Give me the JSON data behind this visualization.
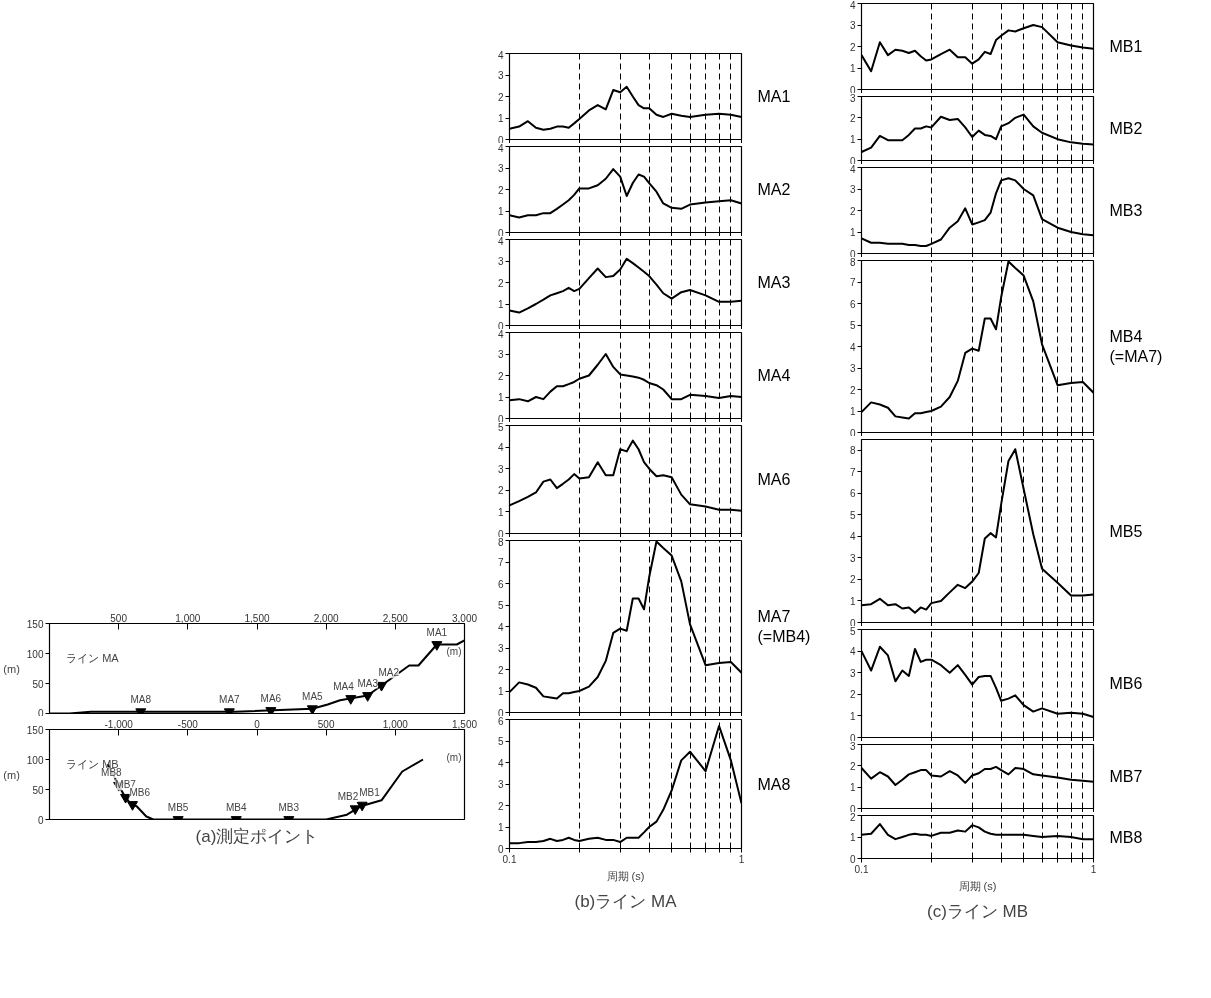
{
  "chart_data": [
    {
      "type": "line",
      "x": [
        0,
        144,
        300,
        1344,
        1900,
        2011,
        2100,
        2300,
        2600,
        2667,
        2800,
        2944,
        3000
      ],
      "series": [
        {
          "color": "#000000",
          "values": [
            0,
            0,
            3,
            3,
            8,
            15,
            22,
            30,
            80,
            80,
            115,
            115,
            122
          ]
        }
      ],
      "xlim": [
        0,
        3000
      ],
      "ylim": [
        0,
        150
      ],
      "xticks": [
        500,
        {
          "value": 1000,
          "label": "1,000"
        },
        {
          "value": 1500,
          "label": "1,500"
        },
        {
          "value": 2000,
          "label": "2,000"
        },
        {
          "value": 2500,
          "label": "2,500"
        },
        {
          "value": 3000,
          "label": "3,000"
        }
      ],
      "yticks": [
        0,
        50,
        100,
        150
      ],
      "ylabel": "(m)",
      "annotations": [
        "ライン MA",
        "(m)",
        {
          "text": "MA8",
          "x": 660,
          "y": 3
        },
        {
          "text": "MA7",
          "x": 1300,
          "y": 3
        },
        {
          "text": "MA6",
          "x": 1600,
          "y": 5
        },
        {
          "text": "MA5",
          "x": 1900,
          "y": 8
        },
        {
          "text": "MA4",
          "x": 2178,
          "y": 25
        },
        {
          "text": "MA3",
          "x": 2300,
          "y": 30
        },
        {
          "text": "MA2",
          "x": 2400,
          "y": 47
        },
        {
          "text": "MA1",
          "x": 2800,
          "y": 115
        }
      ]
    },
    {
      "type": "line",
      "x": [
        -1080,
        -960,
        -920,
        -870,
        -800,
        -750,
        500,
        650,
        750,
        900,
        1050,
        1200
      ],
      "series": [
        {
          "color": "#000000",
          "values": [
            92,
            40,
            28,
            22,
            5,
            0,
            0,
            8,
            22,
            32,
            80,
            100
          ]
        }
      ],
      "xlim": [
        -1500,
        1500
      ],
      "ylim": [
        0,
        150
      ],
      "xticks": [
        {
          "value": -1000,
          "label": "-1,000"
        },
        -500,
        0,
        500,
        {
          "value": 1000,
          "label": "1,000"
        },
        {
          "value": 1500,
          "label": "1,500"
        }
      ],
      "yticks": [
        0,
        50,
        100,
        150
      ],
      "ylabel": "(m)",
      "annotations": [
        "ライン MB",
        "(m)",
        "(a)測定ポイント",
        {
          "text": "MB8",
          "x": -1000,
          "y": 57
        },
        {
          "text": "MB7",
          "x": -950,
          "y": 37
        },
        {
          "text": "MB6",
          "x": -900,
          "y": 25
        },
        {
          "text": "MB5",
          "x": -570,
          "y": 0
        },
        {
          "text": "MB4",
          "x": -150,
          "y": 0
        },
        {
          "text": "MB3",
          "x": 230,
          "y": 0
        },
        {
          "text": "MB2",
          "x": 710,
          "y": 18
        },
        {
          "text": "MB1",
          "x": 760,
          "y": 24
        }
      ]
    },
    {
      "type": "line",
      "log": "x",
      "grid": "x",
      "tick_labels": "y",
      "xlim": [
        0.1,
        1
      ],
      "ylim": [
        0,
        4
      ],
      "yticks": [
        0,
        1,
        2,
        3,
        4
      ],
      "xticks": [
        0.1,
        {
          "value": 0.2,
          "label": null
        },
        {
          "value": 0.3,
          "label": null
        },
        {
          "value": 0.4,
          "label": null
        },
        {
          "value": 0.5,
          "label": null
        },
        {
          "value": 0.6,
          "label": null
        },
        {
          "value": 0.7,
          "label": null
        },
        {
          "value": 0.8,
          "label": null
        },
        {
          "value": 0.9,
          "label": null
        },
        1
      ],
      "x": [
        0.1,
        0.11,
        0.12,
        0.13,
        0.14,
        0.15,
        0.16,
        0.17,
        0.18,
        0.19,
        0.2,
        0.22,
        0.24,
        0.26,
        0.28,
        0.3,
        0.32,
        0.34,
        0.36,
        0.38,
        0.4,
        0.43,
        0.46,
        0.5,
        0.55,
        0.6,
        0.7,
        0.8,
        0.9,
        1
      ],
      "series": [
        {
          "name": "MA1",
          "color": "#000000",
          "values": [
            0.5,
            0.6,
            0.85,
            0.55,
            0.45,
            0.5,
            0.6,
            0.6,
            0.55,
            0.75,
            0.95,
            1.35,
            1.6,
            1.4,
            2.3,
            2.2,
            2.45,
            2.0,
            1.6,
            1.45,
            1.45,
            1.15,
            1.05,
            1.2,
            1.1,
            1.05,
            1.15,
            1.2,
            1.15,
            1.05
          ]
        }
      ]
    },
    {
      "type": "line",
      "log": "x",
      "grid": "x",
      "tick_labels": "y",
      "xlim": [
        0.1,
        1
      ],
      "ylim": [
        0,
        4
      ],
      "yticks": [
        0,
        1,
        2,
        3,
        4
      ],
      "xticks": [
        0.1,
        {
          "value": 0.2,
          "label": null
        },
        {
          "value": 0.3,
          "label": null
        },
        {
          "value": 0.4,
          "label": null
        },
        {
          "value": 0.5,
          "label": null
        },
        {
          "value": 0.6,
          "label": null
        },
        {
          "value": 0.7,
          "label": null
        },
        {
          "value": 0.8,
          "label": null
        },
        {
          "value": 0.9,
          "label": null
        },
        1
      ],
      "x": [
        0.1,
        0.11,
        0.12,
        0.13,
        0.14,
        0.15,
        0.16,
        0.17,
        0.18,
        0.19,
        0.2,
        0.22,
        0.24,
        0.26,
        0.28,
        0.3,
        0.32,
        0.34,
        0.36,
        0.38,
        0.4,
        0.43,
        0.46,
        0.5,
        0.55,
        0.6,
        0.7,
        0.8,
        0.9,
        1
      ],
      "series": [
        {
          "name": "MA2",
          "color": "#000000",
          "values": [
            0.8,
            0.7,
            0.8,
            0.8,
            0.9,
            0.9,
            1.1,
            1.3,
            1.5,
            1.75,
            2.05,
            2.05,
            2.2,
            2.5,
            2.95,
            2.6,
            1.7,
            2.3,
            2.7,
            2.6,
            2.3,
            1.9,
            1.35,
            1.15,
            1.1,
            1.3,
            1.4,
            1.45,
            1.5,
            1.35
          ]
        }
      ]
    },
    {
      "type": "line",
      "log": "x",
      "grid": "x",
      "tick_labels": "y",
      "xlim": [
        0.1,
        1
      ],
      "ylim": [
        0,
        4
      ],
      "yticks": [
        0,
        1,
        2,
        3,
        4
      ],
      "xticks": [
        0.1,
        {
          "value": 0.2,
          "label": null
        },
        {
          "value": 0.3,
          "label": null
        },
        {
          "value": 0.4,
          "label": null
        },
        {
          "value": 0.5,
          "label": null
        },
        {
          "value": 0.6,
          "label": null
        },
        {
          "value": 0.7,
          "label": null
        },
        {
          "value": 0.8,
          "label": null
        },
        {
          "value": 0.9,
          "label": null
        },
        1
      ],
      "x": [
        0.1,
        0.11,
        0.12,
        0.13,
        0.14,
        0.15,
        0.16,
        0.17,
        0.18,
        0.19,
        0.2,
        0.22,
        0.24,
        0.26,
        0.28,
        0.3,
        0.32,
        0.34,
        0.36,
        0.38,
        0.4,
        0.43,
        0.46,
        0.5,
        0.55,
        0.6,
        0.7,
        0.8,
        0.9,
        1
      ],
      "series": [
        {
          "name": "MA3",
          "color": "#000000",
          "values": [
            0.7,
            0.6,
            0.8,
            1.0,
            1.2,
            1.4,
            1.5,
            1.6,
            1.75,
            1.6,
            1.7,
            2.2,
            2.65,
            2.25,
            2.3,
            2.6,
            3.1,
            2.9,
            2.7,
            2.5,
            2.3,
            1.9,
            1.5,
            1.25,
            1.55,
            1.65,
            1.4,
            1.1,
            1.1,
            1.15
          ]
        }
      ]
    },
    {
      "type": "line",
      "log": "x",
      "grid": "x",
      "tick_labels": "y",
      "xlim": [
        0.1,
        1
      ],
      "ylim": [
        0,
        4
      ],
      "yticks": [
        0,
        1,
        2,
        3,
        4
      ],
      "xticks": [
        0.1,
        {
          "value": 0.2,
          "label": null
        },
        {
          "value": 0.3,
          "label": null
        },
        {
          "value": 0.4,
          "label": null
        },
        {
          "value": 0.5,
          "label": null
        },
        {
          "value": 0.6,
          "label": null
        },
        {
          "value": 0.7,
          "label": null
        },
        {
          "value": 0.8,
          "label": null
        },
        {
          "value": 0.9,
          "label": null
        },
        1
      ],
      "x": [
        0.1,
        0.11,
        0.12,
        0.13,
        0.14,
        0.15,
        0.16,
        0.17,
        0.18,
        0.19,
        0.2,
        0.22,
        0.24,
        0.26,
        0.28,
        0.3,
        0.32,
        0.34,
        0.36,
        0.38,
        0.4,
        0.43,
        0.46,
        0.5,
        0.55,
        0.6,
        0.7,
        0.8,
        0.9,
        1
      ],
      "series": [
        {
          "name": "MA4",
          "color": "#000000",
          "values": [
            0.85,
            0.9,
            0.8,
            1.0,
            0.9,
            1.25,
            1.5,
            1.5,
            1.6,
            1.7,
            1.85,
            2.0,
            2.5,
            3.0,
            2.4,
            2.05,
            2.0,
            1.95,
            1.9,
            1.8,
            1.65,
            1.55,
            1.35,
            0.9,
            0.9,
            1.1,
            1.05,
            0.95,
            1.05,
            1.0
          ]
        }
      ]
    },
    {
      "type": "line",
      "log": "x",
      "grid": "x",
      "tick_labels": "y",
      "xlim": [
        0.1,
        1
      ],
      "ylim": [
        0,
        5
      ],
      "yticks": [
        0,
        1,
        2,
        3,
        4,
        5
      ],
      "xticks": [
        0.1,
        {
          "value": 0.2,
          "label": null
        },
        {
          "value": 0.3,
          "label": null
        },
        {
          "value": 0.4,
          "label": null
        },
        {
          "value": 0.5,
          "label": null
        },
        {
          "value": 0.6,
          "label": null
        },
        {
          "value": 0.7,
          "label": null
        },
        {
          "value": 0.8,
          "label": null
        },
        {
          "value": 0.9,
          "label": null
        },
        1
      ],
      "x": [
        0.1,
        0.11,
        0.12,
        0.13,
        0.14,
        0.15,
        0.16,
        0.17,
        0.18,
        0.19,
        0.2,
        0.22,
        0.24,
        0.26,
        0.28,
        0.3,
        0.32,
        0.34,
        0.36,
        0.38,
        0.4,
        0.43,
        0.46,
        0.5,
        0.55,
        0.6,
        0.7,
        0.8,
        0.9,
        1
      ],
      "series": [
        {
          "name": "MA6",
          "color": "#000000",
          "values": [
            1.3,
            1.5,
            1.7,
            1.9,
            2.4,
            2.5,
            2.1,
            2.3,
            2.5,
            2.75,
            2.55,
            2.6,
            3.3,
            2.7,
            2.7,
            3.9,
            3.8,
            4.3,
            3.9,
            3.3,
            3.0,
            2.65,
            2.7,
            2.6,
            1.8,
            1.35,
            1.25,
            1.1,
            1.1,
            1.05
          ]
        }
      ]
    },
    {
      "type": "line",
      "log": "x",
      "grid": "x",
      "tick_labels": "y",
      "xlim": [
        0.1,
        1
      ],
      "ylim": [
        0,
        8
      ],
      "yticks": [
        0,
        1,
        2,
        3,
        4,
        5,
        6,
        7,
        8
      ],
      "xticks": [
        0.1,
        {
          "value": 0.2,
          "label": null
        },
        {
          "value": 0.3,
          "label": null
        },
        {
          "value": 0.4,
          "label": null
        },
        {
          "value": 0.5,
          "label": null
        },
        {
          "value": 0.6,
          "label": null
        },
        {
          "value": 0.7,
          "label": null
        },
        {
          "value": 0.8,
          "label": null
        },
        {
          "value": 0.9,
          "label": null
        },
        1
      ],
      "x": [
        0.1,
        0.11,
        0.12,
        0.13,
        0.14,
        0.15,
        0.16,
        0.17,
        0.18,
        0.19,
        0.2,
        0.22,
        0.24,
        0.26,
        0.28,
        0.3,
        0.32,
        0.34,
        0.36,
        0.38,
        0.4,
        0.43,
        0.46,
        0.5,
        0.55,
        0.6,
        0.7,
        0.8,
        0.9,
        1
      ],
      "series": [
        {
          "name": "MA7 (=MB4)",
          "color": "#000000",
          "values": [
            0.95,
            1.4,
            1.3,
            1.15,
            0.75,
            0.7,
            0.65,
            0.9,
            0.9,
            0.95,
            1.0,
            1.2,
            1.65,
            2.4,
            3.7,
            3.9,
            3.8,
            5.3,
            5.3,
            4.8,
            6.3,
            7.95,
            7.65,
            7.3,
            6.1,
            4.1,
            2.2,
            2.3,
            2.35,
            1.85
          ]
        }
      ]
    },
    {
      "type": "line",
      "log": "x",
      "grid": "x",
      "xlabel": "周期 (s)",
      "annotations": [
        "(b)ライン MA"
      ],
      "xlim": [
        0.1,
        1
      ],
      "ylim": [
        0,
        6
      ],
      "yticks": [
        0,
        1,
        2,
        3,
        4,
        5,
        6
      ],
      "xticks": [
        0.1,
        {
          "value": 0.2,
          "label": null
        },
        {
          "value": 0.3,
          "label": null
        },
        {
          "value": 0.4,
          "label": null
        },
        {
          "value": 0.5,
          "label": null
        },
        {
          "value": 0.6,
          "label": null
        },
        {
          "value": 0.7,
          "label": null
        },
        {
          "value": 0.8,
          "label": null
        },
        {
          "value": 0.9,
          "label": null
        },
        1
      ],
      "x": [
        0.1,
        0.11,
        0.12,
        0.13,
        0.14,
        0.15,
        0.16,
        0.17,
        0.18,
        0.19,
        0.2,
        0.22,
        0.24,
        0.26,
        0.28,
        0.3,
        0.32,
        0.34,
        0.36,
        0.38,
        0.4,
        0.43,
        0.46,
        0.5,
        0.55,
        0.6,
        0.7,
        0.8,
        0.9,
        1
      ],
      "series": [
        {
          "name": "MA8",
          "color": "#000000",
          "values": [
            0.25,
            0.25,
            0.3,
            0.3,
            0.35,
            0.45,
            0.35,
            0.4,
            0.5,
            0.4,
            0.35,
            0.45,
            0.5,
            0.4,
            0.4,
            0.3,
            0.5,
            0.5,
            0.5,
            0.75,
            1.0,
            1.25,
            1.8,
            2.7,
            4.1,
            4.5,
            3.6,
            5.7,
            4.1,
            2.1
          ]
        }
      ]
    },
    {
      "type": "line",
      "log": "x",
      "grid": "x",
      "tick_labels": "y",
      "xlim": [
        0.1,
        1
      ],
      "ylim": [
        0,
        4
      ],
      "yticks": [
        0,
        1,
        2,
        3,
        4
      ],
      "xticks": [
        0.1,
        {
          "value": 0.2,
          "label": null
        },
        {
          "value": 0.3,
          "label": null
        },
        {
          "value": 0.4,
          "label": null
        },
        {
          "value": 0.5,
          "label": null
        },
        {
          "value": 0.6,
          "label": null
        },
        {
          "value": 0.7,
          "label": null
        },
        {
          "value": 0.8,
          "label": null
        },
        {
          "value": 0.9,
          "label": null
        },
        1
      ],
      "x": [
        0.1,
        0.11,
        0.12,
        0.13,
        0.14,
        0.15,
        0.16,
        0.17,
        0.18,
        0.19,
        0.2,
        0.22,
        0.24,
        0.26,
        0.28,
        0.3,
        0.32,
        0.34,
        0.36,
        0.38,
        0.4,
        0.43,
        0.46,
        0.5,
        0.55,
        0.6,
        0.7,
        0.8,
        0.9,
        1
      ],
      "series": [
        {
          "name": "MB1",
          "color": "#000000",
          "values": [
            1.6,
            0.85,
            2.2,
            1.6,
            1.85,
            1.8,
            1.7,
            1.8,
            1.55,
            1.35,
            1.4,
            1.65,
            1.85,
            1.5,
            1.5,
            1.2,
            1.4,
            1.75,
            1.65,
            2.3,
            2.5,
            2.75,
            2.7,
            2.85,
            3.0,
            2.9,
            2.2,
            2.05,
            1.95,
            1.9
          ]
        }
      ]
    },
    {
      "type": "line",
      "log": "x",
      "grid": "x",
      "tick_labels": "y",
      "xlim": [
        0.1,
        1
      ],
      "ylim": [
        0,
        3
      ],
      "yticks": [
        0,
        1,
        2,
        3
      ],
      "xticks": [
        0.1,
        {
          "value": 0.2,
          "label": null
        },
        {
          "value": 0.3,
          "label": null
        },
        {
          "value": 0.4,
          "label": null
        },
        {
          "value": 0.5,
          "label": null
        },
        {
          "value": 0.6,
          "label": null
        },
        {
          "value": 0.7,
          "label": null
        },
        {
          "value": 0.8,
          "label": null
        },
        {
          "value": 0.9,
          "label": null
        },
        1
      ],
      "x": [
        0.1,
        0.11,
        0.12,
        0.13,
        0.14,
        0.15,
        0.16,
        0.17,
        0.18,
        0.19,
        0.2,
        0.22,
        0.24,
        0.26,
        0.28,
        0.3,
        0.32,
        0.34,
        0.36,
        0.38,
        0.4,
        0.43,
        0.46,
        0.5,
        0.55,
        0.6,
        0.7,
        0.8,
        0.9,
        1
      ],
      "series": [
        {
          "name": "MB2",
          "color": "#000000",
          "values": [
            0.4,
            0.6,
            1.15,
            0.95,
            0.95,
            0.95,
            1.2,
            1.5,
            1.5,
            1.6,
            1.55,
            2.05,
            1.9,
            1.95,
            1.55,
            1.1,
            1.4,
            1.2,
            1.15,
            1.0,
            1.6,
            1.75,
            2.0,
            2.15,
            1.6,
            1.3,
            1.0,
            0.85,
            0.78,
            0.75
          ]
        }
      ]
    },
    {
      "type": "line",
      "log": "x",
      "grid": "x",
      "tick_labels": "y",
      "xlim": [
        0.1,
        1
      ],
      "ylim": [
        0,
        4
      ],
      "yticks": [
        0,
        1,
        2,
        3,
        4
      ],
      "xticks": [
        0.1,
        {
          "value": 0.2,
          "label": null
        },
        {
          "value": 0.3,
          "label": null
        },
        {
          "value": 0.4,
          "label": null
        },
        {
          "value": 0.5,
          "label": null
        },
        {
          "value": 0.6,
          "label": null
        },
        {
          "value": 0.7,
          "label": null
        },
        {
          "value": 0.8,
          "label": null
        },
        {
          "value": 0.9,
          "label": null
        },
        1
      ],
      "x": [
        0.1,
        0.11,
        0.12,
        0.13,
        0.14,
        0.15,
        0.16,
        0.17,
        0.18,
        0.19,
        0.2,
        0.22,
        0.24,
        0.26,
        0.28,
        0.3,
        0.32,
        0.34,
        0.36,
        0.38,
        0.4,
        0.43,
        0.46,
        0.5,
        0.55,
        0.6,
        0.7,
        0.8,
        0.9,
        1
      ],
      "series": [
        {
          "name": "MB3",
          "color": "#000000",
          "values": [
            0.7,
            0.5,
            0.5,
            0.45,
            0.45,
            0.45,
            0.4,
            0.4,
            0.35,
            0.35,
            0.45,
            0.65,
            1.2,
            1.5,
            2.1,
            1.35,
            1.45,
            1.55,
            1.9,
            2.8,
            3.4,
            3.5,
            3.4,
            3.0,
            2.7,
            1.6,
            1.2,
            1.0,
            0.9,
            0.85
          ]
        }
      ]
    },
    {
      "type": "line",
      "log": "x",
      "grid": "x",
      "tick_labels": "y",
      "xlim": [
        0.1,
        1
      ],
      "ylim": [
        0,
        8
      ],
      "yticks": [
        0,
        1,
        2,
        3,
        4,
        5,
        6,
        7,
        8
      ],
      "xticks": [
        0.1,
        {
          "value": 0.2,
          "label": null
        },
        {
          "value": 0.3,
          "label": null
        },
        {
          "value": 0.4,
          "label": null
        },
        {
          "value": 0.5,
          "label": null
        },
        {
          "value": 0.6,
          "label": null
        },
        {
          "value": 0.7,
          "label": null
        },
        {
          "value": 0.8,
          "label": null
        },
        {
          "value": 0.9,
          "label": null
        },
        1
      ],
      "x": [
        0.1,
        0.11,
        0.12,
        0.13,
        0.14,
        0.15,
        0.16,
        0.17,
        0.18,
        0.19,
        0.2,
        0.22,
        0.24,
        0.26,
        0.28,
        0.3,
        0.32,
        0.34,
        0.36,
        0.38,
        0.4,
        0.43,
        0.46,
        0.5,
        0.55,
        0.6,
        0.7,
        0.8,
        0.9,
        1
      ],
      "series": [
        {
          "name": "MB4 (=MA7)",
          "color": "#000000",
          "values": [
            0.95,
            1.4,
            1.3,
            1.15,
            0.75,
            0.7,
            0.65,
            0.9,
            0.9,
            0.95,
            1.0,
            1.2,
            1.65,
            2.4,
            3.7,
            3.9,
            3.8,
            5.3,
            5.3,
            4.8,
            6.3,
            7.95,
            7.65,
            7.3,
            6.1,
            4.1,
            2.2,
            2.3,
            2.35,
            1.85
          ]
        }
      ]
    },
    {
      "type": "line",
      "log": "x",
      "grid": "x",
      "tick_labels": "y",
      "xlim": [
        0.1,
        1
      ],
      "ylim": [
        0,
        8.5
      ],
      "yticks": [
        0,
        1,
        2,
        3,
        4,
        5,
        6,
        7,
        8
      ],
      "xticks": [
        0.1,
        {
          "value": 0.2,
          "label": null
        },
        {
          "value": 0.3,
          "label": null
        },
        {
          "value": 0.4,
          "label": null
        },
        {
          "value": 0.5,
          "label": null
        },
        {
          "value": 0.6,
          "label": null
        },
        {
          "value": 0.7,
          "label": null
        },
        {
          "value": 0.8,
          "label": null
        },
        {
          "value": 0.9,
          "label": null
        },
        1
      ],
      "x": [
        0.1,
        0.11,
        0.12,
        0.13,
        0.14,
        0.15,
        0.16,
        0.17,
        0.18,
        0.19,
        0.2,
        0.22,
        0.24,
        0.26,
        0.28,
        0.3,
        0.32,
        0.34,
        0.36,
        0.38,
        0.4,
        0.43,
        0.46,
        0.5,
        0.55,
        0.6,
        0.7,
        0.8,
        0.9,
        1
      ],
      "series": [
        {
          "name": "MB5",
          "color": "#000000",
          "values": [
            0.8,
            0.85,
            1.1,
            0.8,
            0.85,
            0.65,
            0.7,
            0.45,
            0.7,
            0.6,
            0.9,
            1.0,
            1.4,
            1.75,
            1.6,
            1.9,
            2.3,
            3.9,
            4.15,
            3.95,
            5.5,
            7.5,
            8.05,
            6.2,
            4.1,
            2.5,
            1.85,
            1.25,
            1.25,
            1.3
          ]
        }
      ]
    },
    {
      "type": "line",
      "log": "x",
      "grid": "x",
      "tick_labels": "y",
      "xlim": [
        0.1,
        1
      ],
      "ylim": [
        0,
        5
      ],
      "yticks": [
        0,
        1,
        2,
        3,
        4,
        5
      ],
      "xticks": [
        0.1,
        {
          "value": 0.2,
          "label": null
        },
        {
          "value": 0.3,
          "label": null
        },
        {
          "value": 0.4,
          "label": null
        },
        {
          "value": 0.5,
          "label": null
        },
        {
          "value": 0.6,
          "label": null
        },
        {
          "value": 0.7,
          "label": null
        },
        {
          "value": 0.8,
          "label": null
        },
        {
          "value": 0.9,
          "label": null
        },
        1
      ],
      "x": [
        0.1,
        0.11,
        0.12,
        0.13,
        0.14,
        0.15,
        0.16,
        0.17,
        0.18,
        0.19,
        0.2,
        0.22,
        0.24,
        0.26,
        0.28,
        0.3,
        0.32,
        0.34,
        0.36,
        0.38,
        0.4,
        0.43,
        0.46,
        0.5,
        0.55,
        0.6,
        0.7,
        0.8,
        0.9,
        1
      ],
      "series": [
        {
          "name": "MB6",
          "color": "#000000",
          "values": [
            4.0,
            3.1,
            4.2,
            3.8,
            2.6,
            3.1,
            2.85,
            4.1,
            3.5,
            3.6,
            3.6,
            3.35,
            3.0,
            3.35,
            2.9,
            2.45,
            2.8,
            2.85,
            2.85,
            2.3,
            1.7,
            1.8,
            1.95,
            1.5,
            1.2,
            1.35,
            1.1,
            1.15,
            1.1,
            0.95
          ]
        }
      ]
    },
    {
      "type": "line",
      "log": "x",
      "grid": "x",
      "tick_labels": "y",
      "xlim": [
        0.1,
        1
      ],
      "ylim": [
        0,
        3
      ],
      "yticks": [
        0,
        1,
        2,
        3
      ],
      "xticks": [
        0.1,
        {
          "value": 0.2,
          "label": null
        },
        {
          "value": 0.3,
          "label": null
        },
        {
          "value": 0.4,
          "label": null
        },
        {
          "value": 0.5,
          "label": null
        },
        {
          "value": 0.6,
          "label": null
        },
        {
          "value": 0.7,
          "label": null
        },
        {
          "value": 0.8,
          "label": null
        },
        {
          "value": 0.9,
          "label": null
        },
        1
      ],
      "x": [
        0.1,
        0.11,
        0.12,
        0.13,
        0.14,
        0.15,
        0.16,
        0.17,
        0.18,
        0.19,
        0.2,
        0.22,
        0.24,
        0.26,
        0.28,
        0.3,
        0.32,
        0.34,
        0.36,
        0.38,
        0.4,
        0.43,
        0.46,
        0.5,
        0.55,
        0.6,
        0.7,
        0.8,
        0.9,
        1
      ],
      "series": [
        {
          "name": "MB7",
          "color": "#000000",
          "values": [
            1.9,
            1.4,
            1.7,
            1.5,
            1.1,
            1.35,
            1.6,
            1.7,
            1.8,
            1.8,
            1.55,
            1.5,
            1.75,
            1.55,
            1.2,
            1.55,
            1.65,
            1.85,
            1.85,
            1.95,
            1.8,
            1.6,
            1.9,
            1.85,
            1.6,
            1.55,
            1.45,
            1.35,
            1.3,
            1.25
          ]
        }
      ]
    },
    {
      "type": "line",
      "log": "x",
      "grid": "x",
      "xlabel": "周期 (s)",
      "annotations": [
        "(c)ライン MB"
      ],
      "xlim": [
        0.1,
        1
      ],
      "ylim": [
        0,
        2
      ],
      "yticks": [
        0,
        1,
        2
      ],
      "xticks": [
        0.1,
        {
          "value": 0.2,
          "label": null
        },
        {
          "value": 0.3,
          "label": null
        },
        {
          "value": 0.4,
          "label": null
        },
        {
          "value": 0.5,
          "label": null
        },
        {
          "value": 0.6,
          "label": null
        },
        {
          "value": 0.7,
          "label": null
        },
        {
          "value": 0.8,
          "label": null
        },
        {
          "value": 0.9,
          "label": null
        },
        1
      ],
      "x": [
        0.1,
        0.11,
        0.12,
        0.13,
        0.14,
        0.15,
        0.16,
        0.17,
        0.18,
        0.19,
        0.2,
        0.22,
        0.24,
        0.26,
        0.28,
        0.3,
        0.32,
        0.34,
        0.36,
        0.38,
        0.4,
        0.43,
        0.46,
        0.5,
        0.55,
        0.6,
        0.7,
        0.8,
        0.9,
        1
      ],
      "series": [
        {
          "name": "MB8",
          "color": "#000000",
          "values": [
            1.1,
            1.15,
            1.6,
            1.1,
            0.9,
            1.0,
            1.1,
            1.15,
            1.1,
            1.1,
            1.05,
            1.2,
            1.2,
            1.3,
            1.25,
            1.55,
            1.45,
            1.25,
            1.15,
            1.1,
            1.1,
            1.1,
            1.1,
            1.1,
            1.05,
            1.0,
            1.05,
            1.0,
            0.9,
            0.9
          ]
        }
      ]
    }
  ]
}
